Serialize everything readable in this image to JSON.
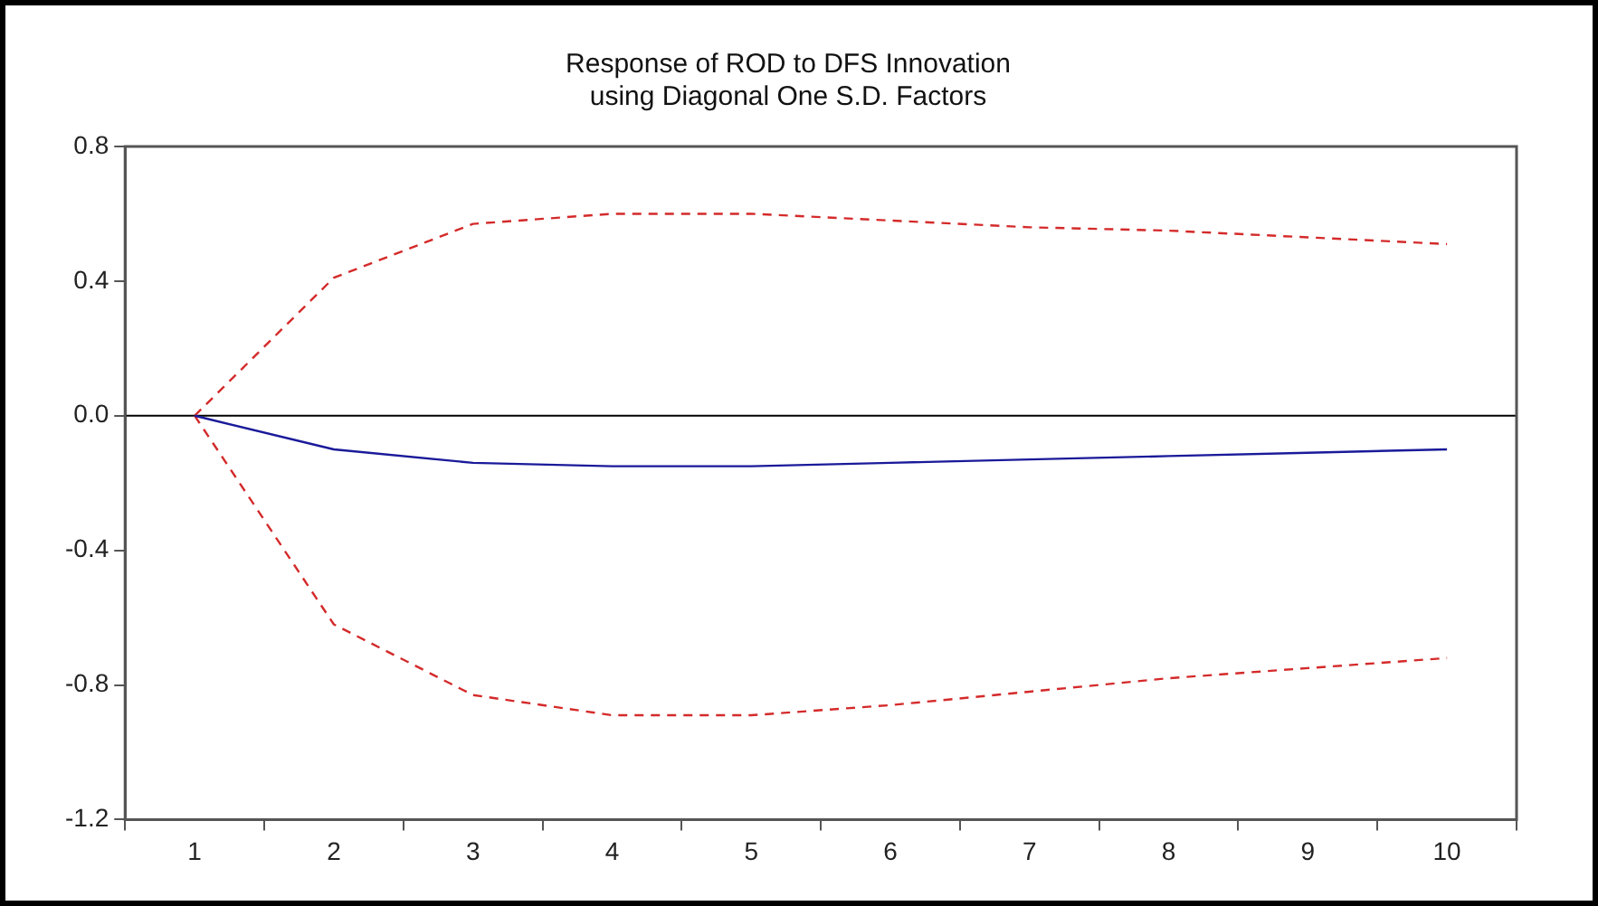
{
  "chart_data": {
    "type": "line",
    "title": "Response of ROD to DFS Innovation\nusing Diagonal One S.D. Factors",
    "categories": [
      "1",
      "2",
      "3",
      "4",
      "5",
      "6",
      "7",
      "8",
      "9",
      "10"
    ],
    "series": [
      {
        "color": "#1a1a9a",
        "line_style": "solid",
        "values": [
          0,
          -0.1,
          -0.14,
          -0.15,
          -0.15,
          -0.14,
          -0.13,
          -0.12,
          -0.11,
          -0.1
        ]
      },
      {
        "color": "#d42a2a",
        "line_style": "dashed",
        "values": [
          0,
          0.41,
          0.57,
          0.6,
          0.6,
          0.58,
          0.56,
          0.55,
          0.53,
          0.51
        ]
      },
      {
        "color": "#d42a2a",
        "line_style": "dashed",
        "values": [
          0,
          -0.62,
          -0.83,
          -0.89,
          -0.89,
          -0.86,
          -0.82,
          -0.78,
          -0.75,
          -0.72
        ]
      }
    ],
    "ylim": [
      -1.2,
      0.8
    ],
    "yticks": [
      {
        "value": -1.2,
        "label": "-1.2"
      },
      {
        "value": -0.8,
        "label": "-0.8"
      },
      {
        "value": -0.4,
        "label": "-0.4"
      },
      {
        "value": 0,
        "label": "0.0"
      },
      {
        "value": 0.4,
        "label": "0.4"
      },
      {
        "value": 0.8,
        "label": "0.8"
      }
    ],
    "ref_lines": [
      {
        "axis": "y",
        "value": 0,
        "color": "#000000"
      }
    ],
    "grid": false,
    "legend": false,
    "marker": "none"
  }
}
